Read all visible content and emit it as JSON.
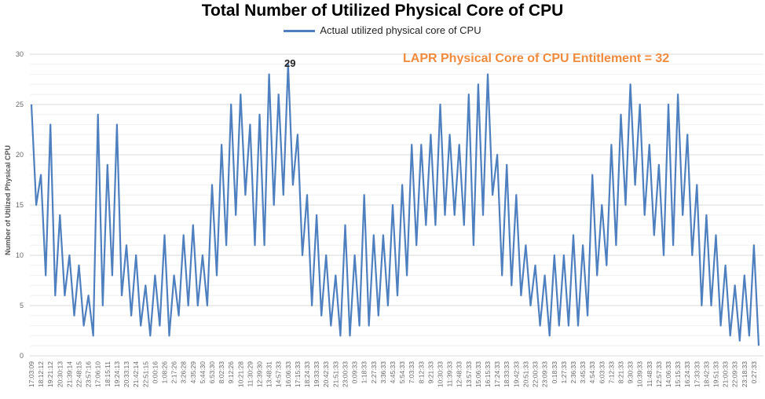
{
  "chart_data": {
    "type": "line",
    "title": "Total Number of Utilized Physical Core of CPU",
    "legend": {
      "position": "top",
      "entries": [
        "Actual utilized physical core of CPU"
      ]
    },
    "xlabel": "",
    "ylabel": "Number of Utilized  Physical CPU",
    "ylim": [
      0,
      30
    ],
    "yticks": [
      0,
      5,
      10,
      15,
      20,
      25,
      30
    ],
    "grid": true,
    "colors": {
      "series": "#4e7fbf",
      "annotation": "#f08a3c"
    },
    "annotations": {
      "peak_label": "29",
      "entitlement": "LAPR Physical Core of CPU Entitlement = 32"
    },
    "x_tick_labels": [
      "17:03:09",
      "18:12:12",
      "19:21:12",
      "20:30:13",
      "21:39:14",
      "22:48:15",
      "23:57:16",
      "17:06:10",
      "18:15:11",
      "19:24:13",
      "20:33:13",
      "21:42:14",
      "22:51:15",
      "0:00:16",
      "1:08:26",
      "2:17:26",
      "3:26:28",
      "4:35:29",
      "5:44:30",
      "6:53:30",
      "8:02:33",
      "9:12:26",
      "10:21:28",
      "11:30:29",
      "12:39:30",
      "13:48:31",
      "14:57:33",
      "16:06:33",
      "17:15:33",
      "18:24:33",
      "19:33:33",
      "20:42:33",
      "21:51:33",
      "23:00:33",
      "0:09:33",
      "1:18:33",
      "2:27:33",
      "3:36:33",
      "4:45:33",
      "5:54:33",
      "7:03:33",
      "8:12:33",
      "9:21:33",
      "10:30:33",
      "11:39:33",
      "12:48:33",
      "13:57:33",
      "15:06:33",
      "16:15:33",
      "17:24:33",
      "18:33:33",
      "19:42:33",
      "20:51:33",
      "22:00:33",
      "23:09:33",
      "0:18:33",
      "1:27:33",
      "2:36:33",
      "3:45:33",
      "4:54:33",
      "6:03:33",
      "7:12:33",
      "8:21:33",
      "9:30:33",
      "10:39:33",
      "11:48:33",
      "12:57:33",
      "14:06:33",
      "15:15:33",
      "16:24:33",
      "17:33:33",
      "18:42:33",
      "19:51:33",
      "21:00:33",
      "22:09:33",
      "23:18:33",
      "0:27:33"
    ],
    "series": [
      {
        "name": "Actual utilized physical core of CPU",
        "values": [
          25,
          15,
          18,
          8,
          23,
          6,
          14,
          6,
          10,
          4,
          9,
          3,
          6,
          2,
          24,
          5,
          19,
          8,
          23,
          6,
          11,
          4,
          10,
          3,
          7,
          2,
          8,
          3,
          12,
          2,
          8,
          4,
          12,
          5,
          13,
          5,
          10,
          5,
          17,
          8,
          21,
          11,
          25,
          14,
          26,
          16,
          23,
          11,
          24,
          11,
          28,
          15,
          26,
          16,
          29,
          17,
          22,
          10,
          16,
          5,
          14,
          4,
          10,
          3,
          8,
          2,
          13,
          2,
          10,
          3,
          16,
          3,
          12,
          4,
          12,
          5,
          15,
          6,
          17,
          8,
          21,
          11,
          21,
          13,
          22,
          13,
          25,
          14,
          22,
          14,
          21,
          13,
          26,
          11,
          27,
          14,
          28,
          16,
          20,
          8,
          19,
          7,
          16,
          6,
          11,
          5,
          9,
          3,
          8,
          2,
          10,
          3,
          10,
          3,
          12,
          3,
          11,
          4,
          18,
          8,
          15,
          9,
          21,
          11,
          24,
          15,
          27,
          17,
          25,
          14,
          21,
          12,
          19,
          10,
          25,
          11,
          26,
          14,
          22,
          10,
          17,
          5,
          14,
          5,
          12,
          3,
          9,
          2,
          7,
          1.5,
          8,
          2,
          11,
          1
        ]
      }
    ]
  }
}
